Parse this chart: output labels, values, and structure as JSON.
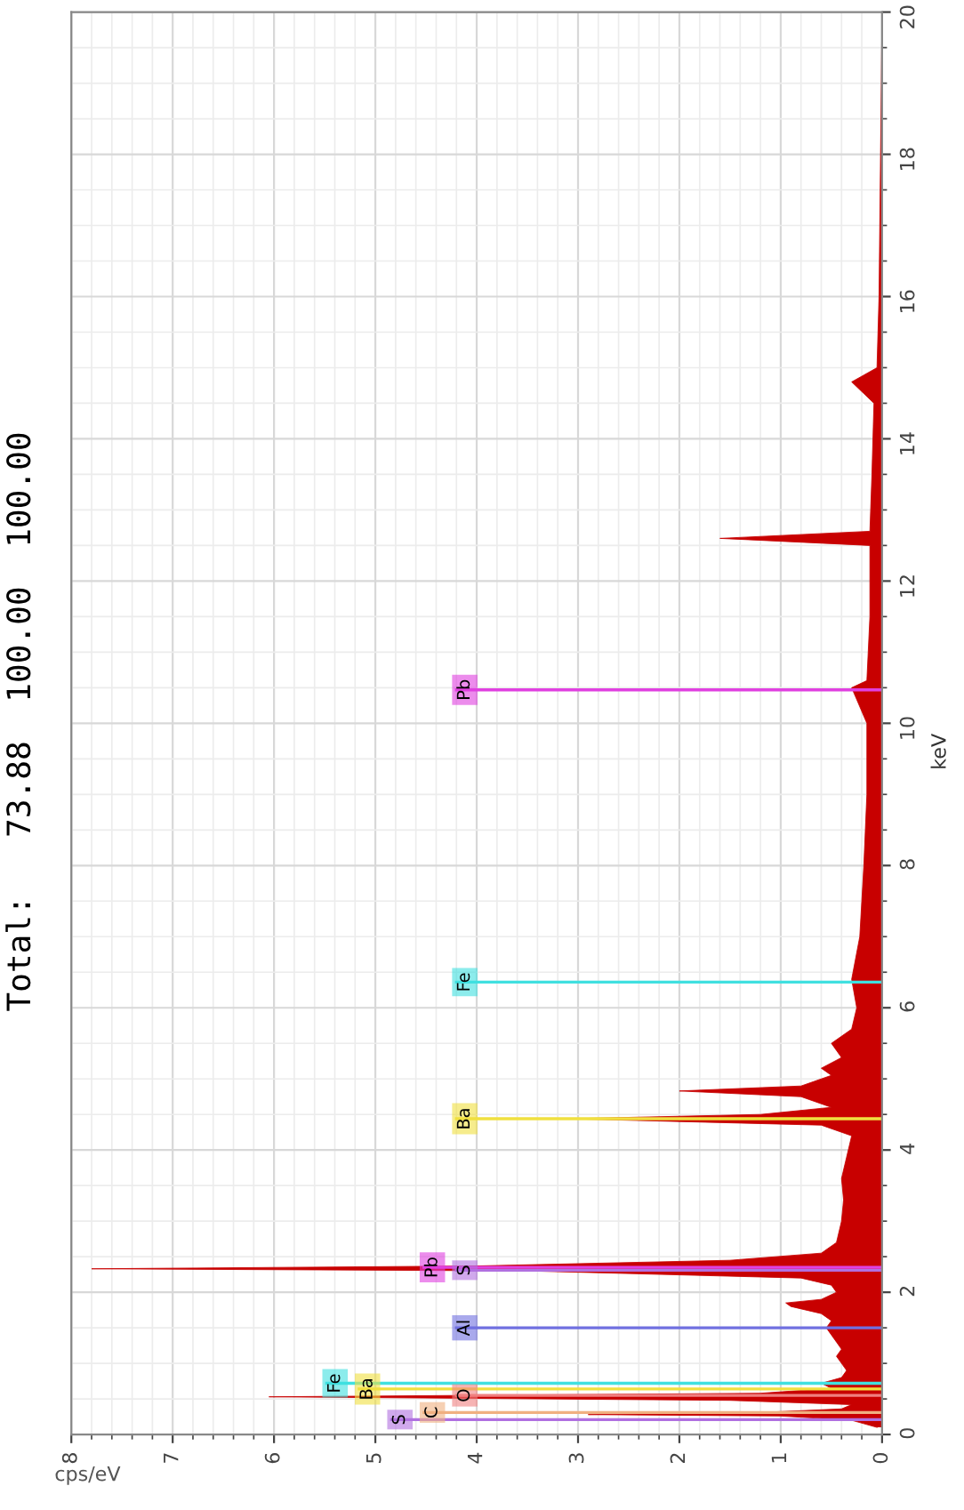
{
  "chart_data": {
    "type": "area",
    "orientation": "horizontal",
    "title": "Total:   73.88  100.00  100.00",
    "xlabel": "cps/eV",
    "ylabel": "keV",
    "xlim": [
      8,
      0
    ],
    "xticks": [
      8,
      7,
      6,
      5,
      4,
      3,
      2,
      1,
      0
    ],
    "ylim": [
      0,
      20
    ],
    "yticks": [
      0,
      2,
      4,
      6,
      8,
      10,
      12,
      14,
      16,
      18,
      20
    ],
    "grid": true,
    "x": [
      0.1,
      0.2,
      0.26,
      0.28,
      0.31,
      0.36,
      0.42,
      0.48,
      0.53,
      0.58,
      0.65,
      0.72,
      0.8,
      0.9,
      1.0,
      1.1,
      1.2,
      1.3,
      1.4,
      1.5,
      1.6,
      1.7,
      1.8,
      1.85,
      1.9,
      2.0,
      2.1,
      2.2,
      2.3,
      2.33,
      2.37,
      2.45,
      2.55,
      2.7,
      3.0,
      3.3,
      3.6,
      3.9,
      4.2,
      4.35,
      4.44,
      4.5,
      4.6,
      4.75,
      4.83,
      4.9,
      5.05,
      5.15,
      5.3,
      5.5,
      5.7,
      6.0,
      6.4,
      7.0,
      7.5,
      8.0,
      9.0,
      10.0,
      10.5,
      10.6,
      11.5,
      12.5,
      12.6,
      12.7,
      13.5,
      14.5,
      14.8,
      15.0,
      16.0,
      20.0
    ],
    "series": [
      {
        "color": "#c80000",
        "values": [
          0.05,
          0.3,
          1.0,
          2.9,
          1.2,
          0.4,
          0.3,
          1.5,
          6.05,
          1.2,
          0.5,
          0.6,
          0.4,
          0.35,
          0.4,
          0.45,
          0.4,
          0.45,
          0.5,
          0.55,
          0.5,
          0.6,
          0.9,
          0.95,
          0.6,
          0.45,
          0.5,
          0.8,
          3.5,
          7.8,
          4.0,
          1.5,
          0.6,
          0.45,
          0.4,
          0.38,
          0.4,
          0.35,
          0.3,
          0.6,
          3.1,
          1.2,
          0.5,
          0.8,
          2.0,
          0.8,
          0.5,
          0.6,
          0.4,
          0.5,
          0.3,
          0.25,
          0.3,
          0.22,
          0.2,
          0.18,
          0.15,
          0.15,
          0.3,
          0.15,
          0.12,
          0.12,
          1.6,
          0.12,
          0.1,
          0.08,
          0.3,
          0.05,
          0.03,
          0.0
        ]
      }
    ],
    "ref_lines": [
      {
        "axis": "y",
        "value": 0.55,
        "label": "O",
        "color": "#f08080"
      },
      {
        "axis": "y",
        "value": 0.31,
        "label": "C",
        "color": "#f0b080"
      },
      {
        "axis": "y",
        "value": 0.21,
        "label": "S",
        "color": "#b070e0"
      },
      {
        "axis": "y",
        "value": 0.64,
        "label": "Ba",
        "color": "#f0e040"
      },
      {
        "axis": "y",
        "value": 0.72,
        "label": "Fe",
        "color": "#40e0e0"
      },
      {
        "axis": "y",
        "value": 1.5,
        "label": "Al",
        "color": "#7070e0"
      },
      {
        "axis": "y",
        "value": 2.31,
        "label": "S",
        "color": "#b070e0"
      },
      {
        "axis": "y",
        "value": 2.35,
        "label": "Pb",
        "color": "#e040e0"
      },
      {
        "axis": "y",
        "value": 4.44,
        "label": "Ba",
        "color": "#f0e040"
      },
      {
        "axis": "y",
        "value": 6.36,
        "label": "Fe",
        "color": "#40e0e0"
      },
      {
        "axis": "y",
        "value": 10.47,
        "label": "Pb",
        "color": "#e040e0"
      }
    ]
  }
}
